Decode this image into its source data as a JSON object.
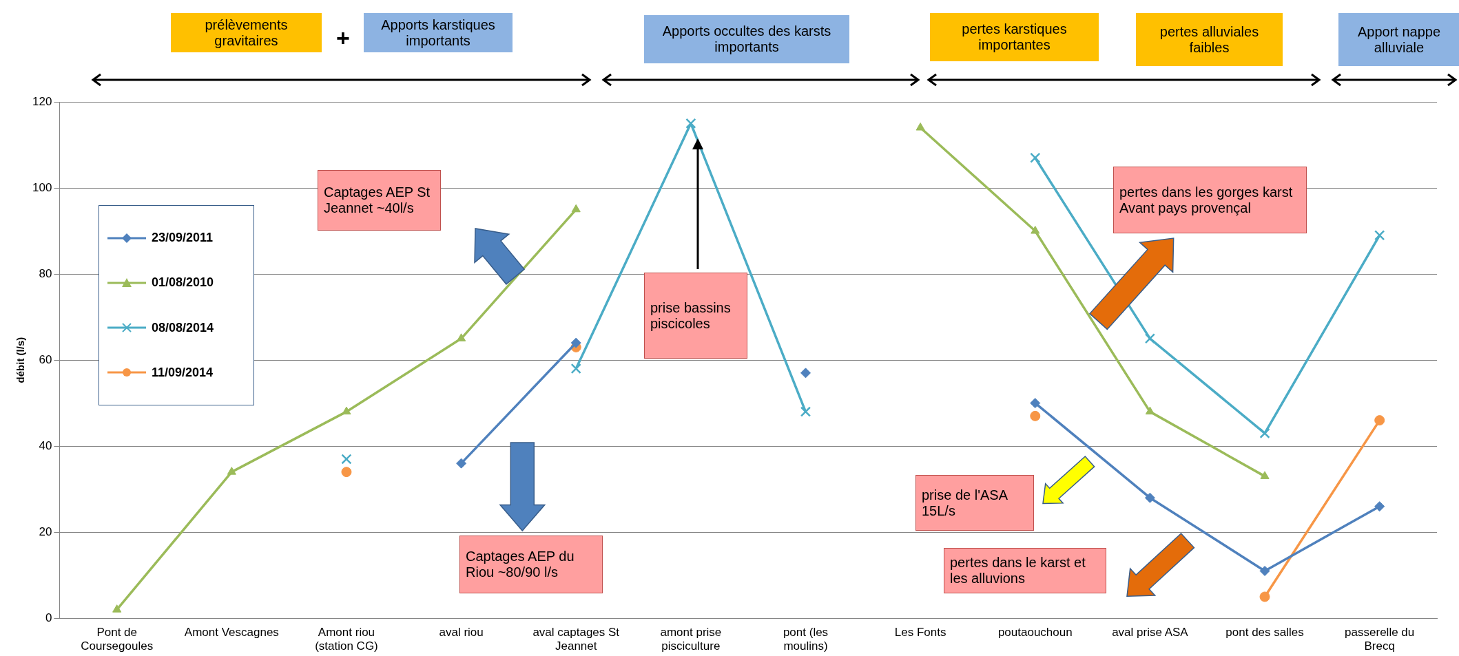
{
  "chart_data": {
    "type": "line",
    "ylabel": "débit (l/s)",
    "categories": [
      "Pont de Coursegoules",
      "Amont Vescagnes",
      "Amont riou (station CG)",
      "aval riou",
      "aval captages St Jeannet",
      "amont prise pisciculture",
      "pont (les moulins)",
      "Les Fonts",
      "poutaouchoun",
      "aval prise ASA",
      "pont des salles",
      "passerelle du Brecq"
    ],
    "series": [
      {
        "name": "23/09/2011",
        "color": "#4f81bd",
        "marker": "diamond",
        "values": [
          null,
          null,
          null,
          36,
          64,
          null,
          57,
          null,
          50,
          28,
          11,
          26
        ]
      },
      {
        "name": "01/08/2010",
        "color": "#9bbb59",
        "marker": "triangle",
        "values": [
          2,
          34,
          48,
          65,
          95,
          null,
          null,
          114,
          90,
          48,
          33,
          null
        ]
      },
      {
        "name": "08/08/2014",
        "color": "#4bacc6",
        "marker": "cross",
        "values": [
          null,
          null,
          37,
          null,
          58,
          115,
          48,
          null,
          107,
          65,
          43,
          89
        ]
      },
      {
        "name": "11/09/2014",
        "color": "#f79646",
        "marker": "circle",
        "values": [
          null,
          null,
          34,
          null,
          63,
          null,
          null,
          null,
          47,
          null,
          5,
          46
        ]
      }
    ],
    "ylim": [
      0,
      120
    ],
    "yticks": [
      0,
      20,
      40,
      60,
      80,
      100,
      120
    ],
    "grid": "y",
    "legend": "left",
    "annotations": [
      "prélèvements gravitaires",
      "+",
      "Apports karstiques importants",
      "Apports occultes des karsts importants",
      "pertes karstiques importantes",
      "pertes alluviales faibles",
      "Apport nappe alluviale",
      "Captages AEP St Jeannet ~40l/s",
      "Captages AEP du Riou ~80/90 l/s",
      "prise bassins piscicoles",
      "pertes dans les gorges karst Avant pays provençal",
      "prise de l'ASA 15L/s",
      "pertes dans le karst et les alluvions"
    ]
  }
}
